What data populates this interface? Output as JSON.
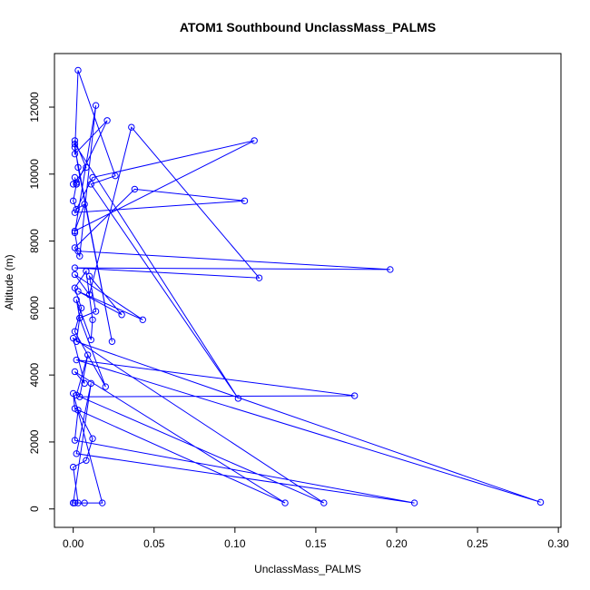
{
  "chart_data": {
    "type": "line",
    "title": "ATOM1 Southbound UnclassMass_PALMS",
    "xlabel": "UnclassMass_PALMS",
    "ylabel": "Altitude (m)",
    "xlim": [
      -0.0116,
      0.3016
    ],
    "ylim": [
      -550,
      13600
    ],
    "xticks": [
      0.0,
      0.05,
      0.1,
      0.15,
      0.2,
      0.25,
      0.3
    ],
    "xtick_labels": [
      "0.00",
      "0.05",
      "0.10",
      "0.15",
      "0.20",
      "0.25",
      "0.30"
    ],
    "yticks": [
      0,
      2000,
      4000,
      6000,
      8000,
      10000,
      12000
    ],
    "ytick_labels": [
      "0",
      "2000",
      "4000",
      "6000",
      "8000",
      "10000",
      "12000"
    ],
    "grid": false,
    "legend": false,
    "series": [
      {
        "color": "#0000ff",
        "marker": "open-circle",
        "x": [
          0.0,
          0.007,
          0.001,
          0.003,
          0.0,
          0.008,
          0.012,
          0.003,
          0.001,
          0.211,
          0.002,
          0.011,
          0.0,
          0.018,
          0.0,
          0.001,
          0.131,
          0.001,
          0.007,
          0.0,
          0.155,
          0.002,
          0.009,
          0.004,
          0.174,
          0.002,
          0.289,
          0.002,
          0.004,
          0.02,
          0.001,
          0.005,
          0.001,
          0.008,
          0.012,
          0.011,
          0.002,
          0.004,
          0.014,
          0.01,
          0.03,
          0.003,
          0.043,
          0.001,
          0.01,
          0.036,
          0.115,
          0.001,
          0.196,
          0.003,
          0.001,
          0.014,
          0.004,
          0.001,
          0.038,
          0.106,
          0.001,
          0.012,
          0.112,
          0.001,
          0.007,
          0.002,
          0.0,
          0.002,
          0.001,
          0.002,
          0.021,
          0.001,
          0.003,
          0.026,
          0.011,
          0.102,
          0.001,
          0.003,
          0.024,
          0.001,
          0.001,
          0.008,
          0.0,
          0.002
        ],
        "y": [
          180,
          180,
          180,
          180,
          1250,
          1450,
          2100,
          2950,
          2050,
          180,
          1650,
          3750,
          180,
          180,
          3450,
          3000,
          180,
          4100,
          3750,
          5100,
          180,
          3400,
          4600,
          3350,
          3380,
          4450,
          200,
          5000,
          5700,
          3650,
          5300,
          6000,
          6600,
          7100,
          5650,
          5050,
          6250,
          5700,
          5900,
          6950,
          5800,
          6500,
          5650,
          7000,
          6400,
          11400,
          6900,
          7200,
          7150,
          7700,
          8250,
          12050,
          7550,
          7800,
          9550,
          9200,
          8850,
          9900,
          11000,
          8300,
          9100,
          8950,
          9200,
          9700,
          9900,
          9700,
          11600,
          10600,
          13100,
          9950,
          9700,
          3300,
          10900,
          10200,
          5000,
          10800,
          11000,
          10200,
          9700,
          9750
        ]
      }
    ]
  }
}
